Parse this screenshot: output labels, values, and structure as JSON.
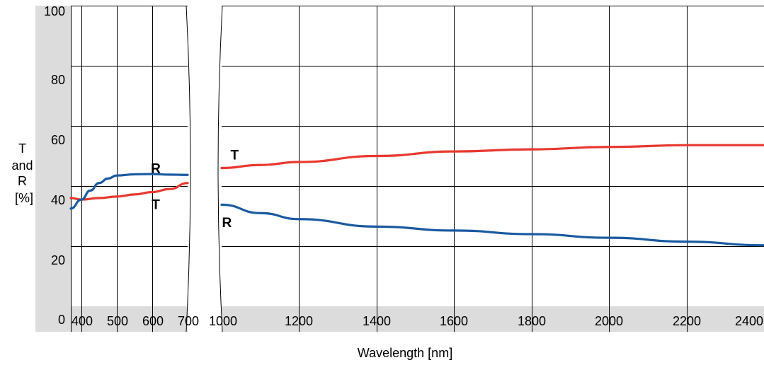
{
  "chart_data": {
    "type": "line",
    "title": "",
    "xlabel": "Wavelength [nm]",
    "ylabel_lines": [
      "T",
      "and",
      "R",
      "[%]"
    ],
    "ylim": [
      0,
      100
    ],
    "yticks": [
      0,
      20,
      40,
      60,
      80,
      100
    ],
    "x_break": [
      700,
      1000
    ],
    "xlim_left": [
      370,
      700
    ],
    "xlim_right": [
      1000,
      2400
    ],
    "xticks_left": [
      400,
      500,
      600,
      700
    ],
    "xticks_right": [
      1000,
      1200,
      1400,
      1600,
      1800,
      2000,
      2200,
      2400
    ],
    "grid": true,
    "colors": {
      "T": "#e8392f",
      "R": "#1a5aa0",
      "band": "#dcdcdc",
      "grid": "#000000"
    },
    "series": [
      {
        "name": "T",
        "segments": [
          {
            "x": [
              370,
              400,
              450,
              500,
              550,
              600,
              650,
              700
            ],
            "y": [
              36,
              35.5,
              36,
              36.5,
              37.2,
              38,
              39,
              41
            ]
          },
          {
            "x": [
              1000,
              1100,
              1200,
              1400,
              1600,
              1800,
              2000,
              2200,
              2400
            ],
            "y": [
              46,
              47,
              48,
              50,
              51.5,
              52.2,
              53,
              53.6,
              53.6
            ]
          }
        ]
      },
      {
        "name": "R",
        "segments": [
          {
            "x": [
              370,
              400,
              425,
              450,
              475,
              500,
              550,
              600,
              650,
              700
            ],
            "y": [
              32.5,
              35.5,
              38.5,
              41,
              42.5,
              43.5,
              43.9,
              44,
              43.8,
              43.7
            ]
          },
          {
            "x": [
              1000,
              1100,
              1200,
              1400,
              1600,
              1800,
              2000,
              2200,
              2400
            ],
            "y": [
              33.8,
              31,
              29,
              26.5,
              25.2,
              24,
              22.8,
              21.5,
              20.3
            ]
          }
        ]
      }
    ],
    "annotations": [
      {
        "text": "R",
        "x": 650,
        "y": 46
      },
      {
        "text": "T",
        "x": 650,
        "y": 34
      },
      {
        "text": "T",
        "x": 1070,
        "y": 50.5
      },
      {
        "text": "R",
        "x": 1050,
        "y": 28
      }
    ]
  }
}
